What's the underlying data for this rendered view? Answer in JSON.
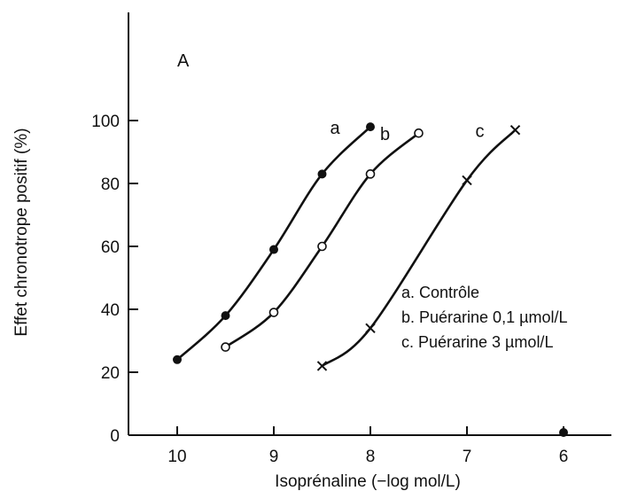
{
  "chart_data": {
    "type": "line",
    "panel_label": "A",
    "xlabel": "Isoprénaline (−log mol/L)",
    "ylabel": "Effet chronotrope positif (%)",
    "xlim": [
      10.5,
      5.5
    ],
    "ylim": [
      0,
      102
    ],
    "x_reversed": true,
    "grid": false,
    "legend_position": "center-right",
    "x_ticks": [
      10,
      9,
      8,
      7,
      6
    ],
    "x_tick_labels": [
      "10",
      "9",
      "8",
      "7",
      "6"
    ],
    "y_ticks": [
      0,
      20,
      40,
      60,
      80,
      100
    ],
    "y_tick_labels": [
      "0",
      "20",
      "40",
      "60",
      "80",
      "100"
    ],
    "series": [
      {
        "id": "a",
        "curve_label": "a",
        "name": "a. Contrôle",
        "marker": "filled-circle",
        "x": [
          10,
          9.5,
          9,
          8.5,
          8
        ],
        "y": [
          24,
          38,
          59,
          83,
          98
        ]
      },
      {
        "id": "b",
        "curve_label": "b",
        "name": "b. Puérarine 0,1 µmol/L",
        "marker": "open-circle",
        "x": [
          9.5,
          9,
          8.5,
          8,
          7.5
        ],
        "y": [
          28,
          39,
          60,
          83,
          96
        ]
      },
      {
        "id": "c",
        "curve_label": "c",
        "name": "c. Puérarine 3 µmol/L",
        "marker": "cross",
        "x": [
          8.5,
          8,
          7,
          6.5
        ],
        "y": [
          22,
          34,
          81,
          97
        ]
      }
    ],
    "extra_points": [
      {
        "x": 6,
        "y": 0,
        "marker": "filled-circle"
      }
    ]
  }
}
